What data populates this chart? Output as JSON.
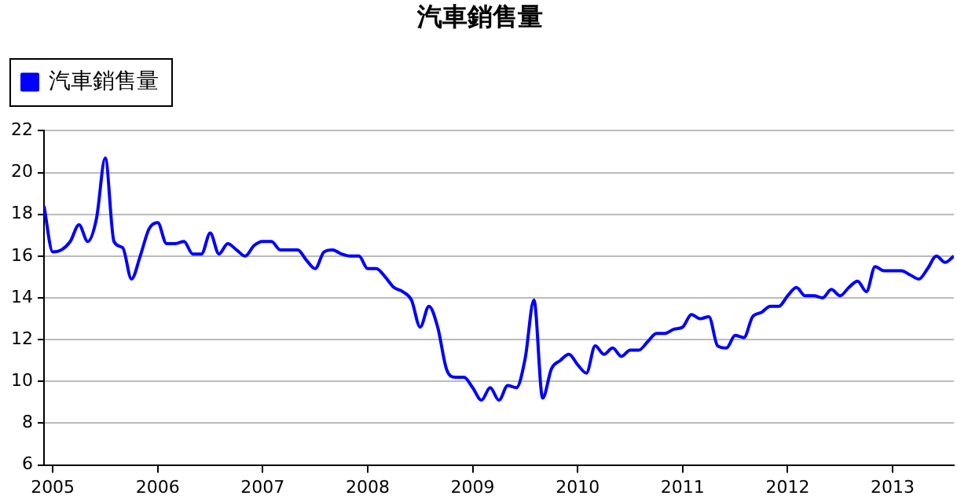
{
  "chart_data": {
    "type": "line",
    "title": "汽車銷售量",
    "x": [
      "2004-12",
      "2005-01",
      "2005-02",
      "2005-03",
      "2005-04",
      "2005-05",
      "2005-06",
      "2005-07",
      "2005-08",
      "2005-09",
      "2005-10",
      "2005-11",
      "2005-12",
      "2006-01",
      "2006-02",
      "2006-03",
      "2006-04",
      "2006-05",
      "2006-06",
      "2006-07",
      "2006-08",
      "2006-09",
      "2006-10",
      "2006-11",
      "2006-12",
      "2007-01",
      "2007-02",
      "2007-03",
      "2007-04",
      "2007-05",
      "2007-06",
      "2007-07",
      "2007-08",
      "2007-09",
      "2007-10",
      "2007-11",
      "2007-12",
      "2008-01",
      "2008-02",
      "2008-03",
      "2008-04",
      "2008-05",
      "2008-06",
      "2008-07",
      "2008-08",
      "2008-09",
      "2008-10",
      "2008-11",
      "2008-12",
      "2009-01",
      "2009-02",
      "2009-03",
      "2009-04",
      "2009-05",
      "2009-06",
      "2009-07",
      "2009-08",
      "2009-09",
      "2009-10",
      "2009-11",
      "2009-12",
      "2010-01",
      "2010-02",
      "2010-03",
      "2010-04",
      "2010-05",
      "2010-06",
      "2010-07",
      "2010-08",
      "2010-09",
      "2010-10",
      "2010-11",
      "2010-12",
      "2011-01",
      "2011-02",
      "2011-03",
      "2011-04",
      "2011-05",
      "2011-06",
      "2011-07",
      "2011-08",
      "2011-09",
      "2011-10",
      "2011-11",
      "2011-12",
      "2012-01",
      "2012-02",
      "2012-03",
      "2012-04",
      "2012-05",
      "2012-06",
      "2012-07",
      "2012-08",
      "2012-09",
      "2012-10",
      "2012-11",
      "2012-12",
      "2013-01",
      "2013-02",
      "2013-03",
      "2013-04",
      "2013-05",
      "2013-06",
      "2013-07",
      "2013-08"
    ],
    "series": [
      {
        "name": "汽車銷售量",
        "color": "#0000ff",
        "values": [
          18.4,
          16.2,
          16.3,
          16.7,
          17.5,
          16.7,
          17.8,
          20.7,
          16.7,
          16.4,
          14.9,
          16.0,
          17.3,
          17.6,
          16.6,
          16.6,
          16.7,
          16.1,
          16.1,
          17.1,
          16.1,
          16.6,
          16.3,
          16.0,
          16.5,
          16.7,
          16.7,
          16.3,
          16.3,
          16.3,
          15.8,
          15.4,
          16.2,
          16.3,
          16.1,
          16.0,
          16.0,
          15.4,
          15.4,
          15.0,
          14.5,
          14.3,
          13.9,
          12.6,
          13.6,
          12.6,
          10.6,
          10.2,
          10.2,
          9.7,
          9.1,
          9.7,
          9.1,
          9.8,
          9.7,
          11.1,
          13.9,
          9.2,
          10.6,
          11.0,
          11.3,
          10.8,
          10.4,
          11.7,
          11.3,
          11.6,
          11.2,
          11.5,
          11.5,
          11.9,
          12.3,
          12.3,
          12.5,
          12.6,
          13.2,
          13.0,
          13.1,
          11.7,
          11.6,
          12.2,
          12.1,
          13.1,
          13.3,
          13.6,
          13.6,
          14.1,
          14.5,
          14.1,
          14.1,
          14.0,
          14.4,
          14.1,
          14.5,
          14.8,
          14.3,
          15.5,
          15.3,
          15.3,
          15.3,
          15.1,
          14.9,
          15.4,
          16.0,
          15.7,
          16.0
        ]
      }
    ],
    "xlim": [
      "2004-12",
      "2013-08"
    ],
    "xticks": [
      "2005",
      "2006",
      "2007",
      "2008",
      "2009",
      "2010",
      "2011",
      "2012",
      "2013"
    ],
    "ylim": [
      6,
      22
    ],
    "yticks": [
      6,
      8,
      10,
      12,
      14,
      16,
      18,
      20,
      22
    ],
    "grid": "y",
    "legend": "top left",
    "marker": "none",
    "line_style": "solid"
  }
}
